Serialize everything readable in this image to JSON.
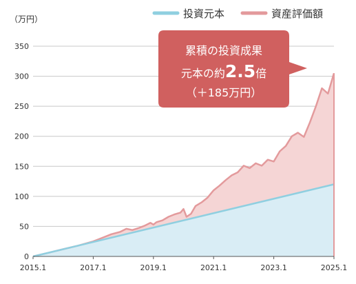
{
  "chart_data": {
    "type": "area",
    "unit_label": "（万円）",
    "x_ticks": [
      "2015.1",
      "2017.1",
      "2019.1",
      "2021.1",
      "2023.1",
      "2025.1"
    ],
    "y_ticks": [
      0,
      50,
      100,
      150,
      200,
      250,
      300,
      350
    ],
    "ylim": [
      0,
      350
    ],
    "xlim": [
      2015.0,
      2025.0
    ],
    "grid": true,
    "legend_position": "top-right",
    "series": [
      {
        "name": "投資元本",
        "color": "#8fcfe0",
        "fill": "#d9edf5",
        "x": [
          2015.0,
          2025.0
        ],
        "values": [
          0,
          120
        ]
      },
      {
        "name": "資産評価額",
        "color": "#e39a9c",
        "fill": "#f5d5d5",
        "x": [
          2015.0,
          2015.5,
          2016.0,
          2016.5,
          2017.0,
          2017.3,
          2017.6,
          2017.9,
          2018.1,
          2018.3,
          2018.5,
          2018.7,
          2018.9,
          2019.0,
          2019.1,
          2019.3,
          2019.5,
          2019.7,
          2019.9,
          2020.0,
          2020.1,
          2020.25,
          2020.4,
          2020.6,
          2020.8,
          2021.0,
          2021.2,
          2021.4,
          2021.6,
          2021.8,
          2022.0,
          2022.2,
          2022.4,
          2022.6,
          2022.8,
          2023.0,
          2023.2,
          2023.4,
          2023.6,
          2023.8,
          2024.0,
          2024.2,
          2024.4,
          2024.6,
          2024.8,
          2025.0
        ],
        "values": [
          0,
          6,
          12,
          18,
          25,
          31,
          37,
          41,
          46,
          44,
          47,
          51,
          56,
          53,
          57,
          60,
          66,
          70,
          73,
          79,
          66,
          71,
          84,
          90,
          98,
          110,
          118,
          127,
          135,
          140,
          151,
          147,
          155,
          151,
          161,
          158,
          175,
          184,
          200,
          206,
          199,
          223,
          250,
          280,
          271,
          305
        ]
      }
    ],
    "callout": {
      "line1": "累積の投資成果",
      "line2_prefix": "元本の約",
      "line2_big": "2.5",
      "line2_suffix": "倍",
      "line3": "（＋185万円）",
      "color": "#d0605f"
    }
  }
}
